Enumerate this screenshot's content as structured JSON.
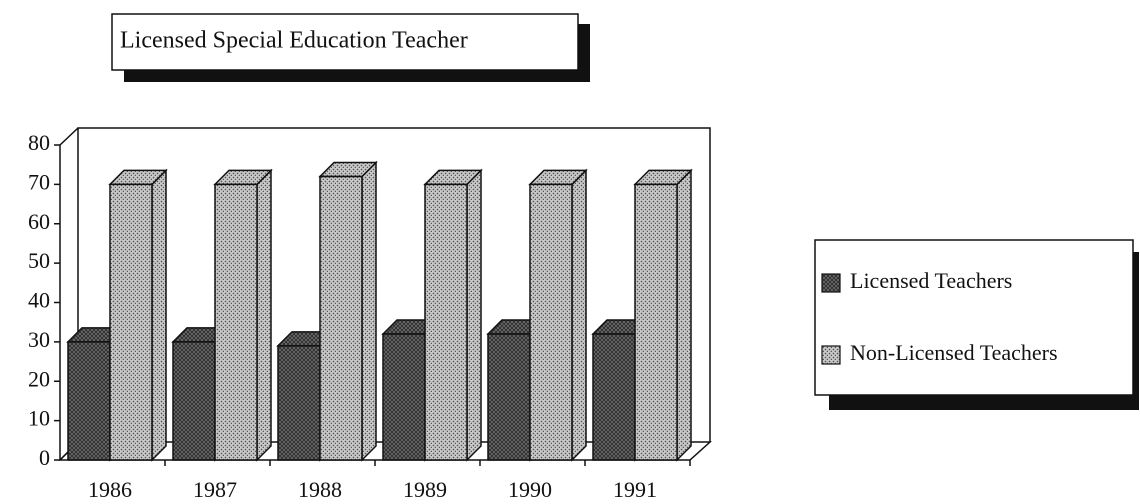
{
  "chart_data": {
    "type": "bar3d",
    "title": "Licensed Special Education Teacher",
    "categories": [
      "1986",
      "1987",
      "1988",
      "1989",
      "1990",
      "1991"
    ],
    "series": [
      {
        "name": "Licensed Teachers",
        "color": "#6a6a6a",
        "values": [
          30,
          30,
          29,
          32,
          32,
          32
        ]
      },
      {
        "name": "Non-Licensed Teachers",
        "color": "#c8c8c8",
        "values": [
          70,
          70,
          72,
          70,
          70,
          70
        ]
      }
    ],
    "ylim": [
      0,
      80
    ],
    "yticks": [
      0,
      10,
      20,
      30,
      40,
      50,
      60,
      70,
      80
    ],
    "legend": "right"
  }
}
